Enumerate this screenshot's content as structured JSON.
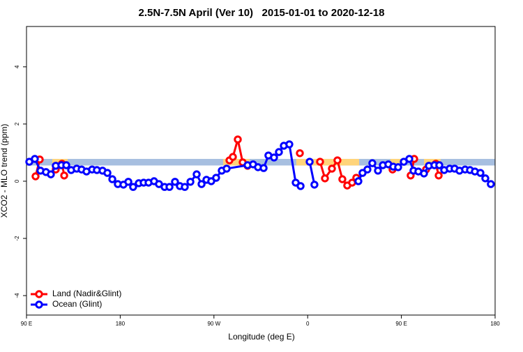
{
  "chart_data": {
    "type": "line",
    "title": "2.5N-7.5N April (Ver 10)   2015-01-01 to 2020-12-18",
    "x_label": "Longitude (deg E)",
    "y_label": "XCO2 - MLO trend (ppm)",
    "xlim": [
      90,
      540
    ],
    "xticks": [
      {
        "value": 90,
        "label": "90 E"
      },
      {
        "value": 180,
        "label": "180"
      },
      {
        "value": 270,
        "label": "90 W"
      },
      {
        "value": 360,
        "label": "0"
      },
      {
        "value": 450,
        "label": "90 E"
      },
      {
        "value": 540,
        "label": "180"
      }
    ],
    "ylim": [
      -4.68,
      5.41
    ],
    "yticks": [
      -4,
      -2,
      0,
      2,
      4
    ],
    "legend": "bottom-left",
    "ocean_band": [
      0.55,
      0.78
    ],
    "ocean_band_color": "#a7bfe0",
    "land_band_color": "#ffd47a",
    "land_bands": [
      [
        114.8,
        129.5
      ],
      [
        278.8,
        304.3
      ],
      [
        349.1,
        409.4
      ],
      [
        439.5,
        449.6
      ],
      [
        471.7,
        487.7
      ]
    ],
    "series": [
      {
        "name": "Land (Nadir&Glint)",
        "color": "#ff0000",
        "x": [
          98.7,
          102.7,
          null,
          118.1,
          124.1,
          126.2,
          null,
          284.9,
          288.2,
          292.9,
          297.6,
          302.3,
          null,
          352.5,
          null,
          371.9,
          376.6,
          383.3,
          388.6,
          393.3,
          398.0,
          402.7,
          406.7,
          null,
          441.5,
          null,
          458.9,
          462.3,
          null,
          473.7,
          483.1,
          485.8
        ],
        "values": [
          0.17,
          0.76,
          null,
          0.41,
          0.61,
          0.2,
          null,
          0.73,
          0.85,
          1.46,
          0.66,
          0.54,
          null,
          0.98,
          null,
          0.68,
          0.1,
          0.44,
          0.73,
          0.07,
          -0.15,
          -0.05,
          0.12,
          null,
          0.41,
          null,
          0.2,
          0.78,
          null,
          0.41,
          0.61,
          0.2
        ]
      },
      {
        "name": "Ocean (Glint)",
        "color": "#0000ff",
        "x": [
          92.7,
          98.0,
          103.4,
          108.7,
          113.4,
          118.1,
          123.5,
          128.2,
          132.9,
          138.2,
          142.9,
          147.6,
          153.0,
          157.6,
          163.0,
          167.7,
          172.4,
          177.7,
          183.1,
          187.8,
          192.4,
          197.8,
          202.5,
          207.2,
          212.5,
          217.2,
          222.6,
          227.3,
          232.6,
          237.3,
          242.0,
          247.4,
          253.4,
          258.1,
          262.8,
          267.4,
          272.1,
          277.5,
          282.2,
          302.3,
          307.6,
          312.3,
          317.7,
          322.3,
          327.7,
          332.4,
          337.1,
          342.4,
          348.5,
          353.2,
          null,
          361.9,
          366.5,
          null,
          408.7,
          412.7,
          417.4,
          422.1,
          427.5,
          432.2,
          437.5,
          442.2,
          446.9,
          452.3,
          457.6,
          461.6,
          466.3,
          471.7,
          476.4,
          481.7,
          486.4,
          491.1,
          496.4,
          501.1,
          505.8,
          511.2,
          515.9,
          520.6,
          525.9,
          530.6,
          535.9
        ],
        "values": [
          0.68,
          0.78,
          0.37,
          0.32,
          0.24,
          0.54,
          0.56,
          0.56,
          0.39,
          0.44,
          0.41,
          0.34,
          0.41,
          0.39,
          0.37,
          0.29,
          0.07,
          -0.1,
          -0.12,
          -0.02,
          -0.2,
          -0.07,
          -0.05,
          -0.05,
          0.0,
          -0.1,
          -0.2,
          -0.2,
          -0.02,
          -0.17,
          -0.2,
          -0.02,
          0.24,
          -0.1,
          0.05,
          0.0,
          0.12,
          0.37,
          0.44,
          0.56,
          0.59,
          0.49,
          0.46,
          0.9,
          0.83,
          1.02,
          1.24,
          1.29,
          -0.05,
          -0.17,
          null,
          0.68,
          -0.12,
          null,
          0.0,
          0.29,
          0.41,
          0.63,
          0.37,
          0.56,
          0.59,
          0.51,
          0.49,
          0.68,
          0.78,
          0.37,
          0.34,
          0.27,
          0.54,
          0.56,
          0.56,
          0.39,
          0.44,
          0.44,
          0.37,
          0.41,
          0.39,
          0.34,
          0.29,
          0.1,
          -0.1
        ]
      }
    ]
  }
}
